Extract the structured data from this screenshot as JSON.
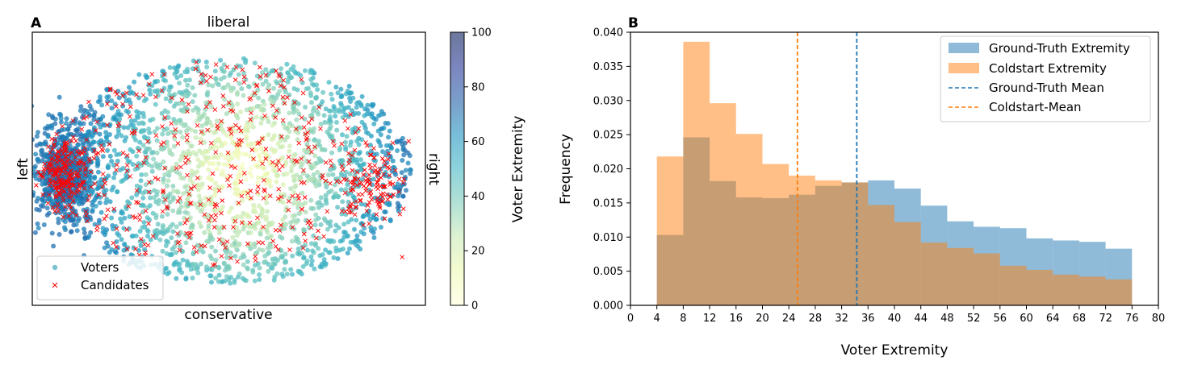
{
  "chart_data": [
    {
      "panel": "A",
      "type": "scatter",
      "label_top": "liberal",
      "label_bottom": "conservative",
      "label_left": "left",
      "label_right": "right",
      "colorbar": {
        "label": "Voter Extremity",
        "range": [
          0,
          100
        ],
        "ticks": [
          "0",
          "20",
          "40",
          "60",
          "80",
          "100"
        ],
        "colormap": "YlGnBu",
        "colors": [
          "#ffffd9",
          "#edf8b1",
          "#c7e9b4",
          "#7fcdbb",
          "#41b6c4",
          "#1d91c0",
          "#225ea8",
          "#253494",
          "#081d58"
        ]
      },
      "legend": {
        "placement": "lower-left",
        "entries": [
          {
            "name": "Voters",
            "marker": "circle"
          },
          {
            "name": "Candidates",
            "marker": "x",
            "color": "#ff0000"
          }
        ]
      },
      "grid": false
    },
    {
      "panel": "B",
      "type": "histogram",
      "xlabel": "Voter Extremity",
      "ylabel": "Frequency",
      "xlim": [
        0,
        80
      ],
      "ylim": [
        0,
        0.04
      ],
      "xticks": [
        "0",
        "4",
        "8",
        "12",
        "16",
        "20",
        "24",
        "28",
        "32",
        "36",
        "40",
        "44",
        "48",
        "52",
        "56",
        "60",
        "64",
        "68",
        "72",
        "76",
        "80"
      ],
      "yticks": [
        "0.000",
        "0.005",
        "0.010",
        "0.015",
        "0.020",
        "0.025",
        "0.030",
        "0.035",
        "0.040"
      ],
      "bin_edges": [
        4,
        8,
        12,
        16,
        20,
        24,
        28,
        32,
        36,
        40,
        44,
        48,
        52,
        56,
        60,
        64,
        68,
        72,
        76
      ],
      "series": [
        {
          "name": "Ground-Truth Extremity",
          "color": "#1f77b4",
          "values": [
            0.0103,
            0.0246,
            0.0182,
            0.0158,
            0.0157,
            0.0162,
            0.0175,
            0.018,
            0.0183,
            0.0171,
            0.0146,
            0.0123,
            0.0115,
            0.0113,
            0.0098,
            0.0095,
            0.0093,
            0.0083
          ]
        },
        {
          "name": "Coldstart Extremity",
          "color": "#ff7f0e",
          "values": [
            0.0218,
            0.0386,
            0.0296,
            0.0251,
            0.0207,
            0.019,
            0.0183,
            0.018,
            0.0147,
            0.0122,
            0.0092,
            0.0084,
            0.0076,
            0.0058,
            0.0052,
            0.0045,
            0.0042,
            0.0038
          ]
        }
      ],
      "vlines": [
        {
          "name": "Ground-Truth Mean",
          "x": 34.3,
          "color": "#1f77b4",
          "style": "dashed"
        },
        {
          "name": "Coldstart-Mean",
          "x": 25.3,
          "color": "#ff7f0e",
          "style": "dashed"
        }
      ],
      "legend": {
        "placement": "top-right"
      },
      "grid": false
    }
  ]
}
